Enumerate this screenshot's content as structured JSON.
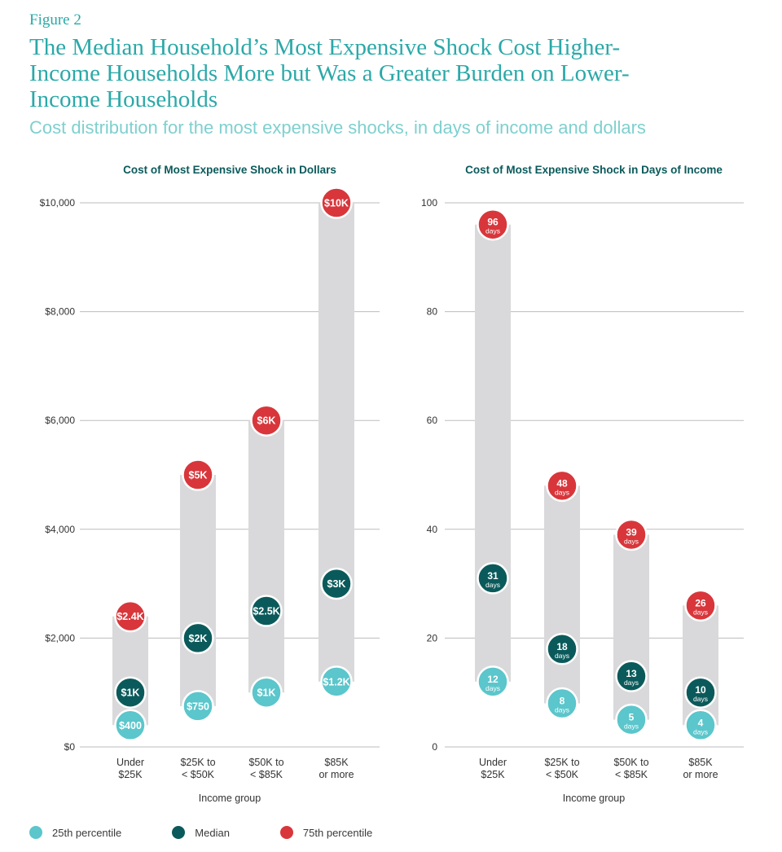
{
  "figure_label": "Figure 2",
  "title_lines": [
    "The Median Household’s Most Expensive Shock Cost Higher-",
    "Income Households More but Was a Greater Burden on Lower-",
    "Income Households"
  ],
  "subtitle": "Cost distribution for the most expensive shocks, in days of income and dollars",
  "colors": {
    "p25": "#5bc6cb",
    "median": "#0b5a5b",
    "p75": "#d8363b",
    "range": "#d9d9db",
    "grid": "#bdbdbd"
  },
  "legend": [
    {
      "label": "25th percentile",
      "color": "#5bc6cb"
    },
    {
      "label": "Median",
      "color": "#0b5a5b"
    },
    {
      "label": "75th percentile",
      "color": "#d8363b"
    }
  ],
  "chart_data": [
    {
      "type": "range-dot",
      "title": "Cost of Most Expensive Shock in Dollars",
      "xlabel": "Income group",
      "ylabel": "",
      "ylim": [
        0,
        10000
      ],
      "yticks": [
        0,
        2000,
        4000,
        6000,
        8000,
        10000
      ],
      "ytick_labels": [
        "$0",
        "$2,000",
        "$4,000",
        "$6,000",
        "$8,000",
        "$10,000"
      ],
      "categories": [
        [
          "Under",
          "$25K"
        ],
        [
          "$25K to",
          "< $50K"
        ],
        [
          "$50K to",
          "< $85K"
        ],
        [
          "$85K",
          "or more"
        ]
      ],
      "series": [
        {
          "name": "25th percentile",
          "values": [
            400,
            750,
            1000,
            1200
          ],
          "labels": [
            [
              "$400"
            ],
            [
              "$750"
            ],
            [
              "$1K"
            ],
            [
              "$1.2K"
            ]
          ]
        },
        {
          "name": "Median",
          "values": [
            1000,
            2000,
            2500,
            3000
          ],
          "labels": [
            [
              "$1K"
            ],
            [
              "$2K"
            ],
            [
              "$2.5K"
            ],
            [
              "$3K"
            ]
          ]
        },
        {
          "name": "75th percentile",
          "values": [
            2400,
            5000,
            6000,
            10000
          ],
          "labels": [
            [
              "$2.4K"
            ],
            [
              "$5K"
            ],
            [
              "$6K"
            ],
            [
              "$10K"
            ]
          ]
        }
      ]
    },
    {
      "type": "range-dot",
      "title": "Cost of Most Expensive Shock in Days of Income",
      "xlabel": "Income group",
      "ylabel": "",
      "ylim": [
        0,
        100
      ],
      "yticks": [
        0,
        20,
        40,
        60,
        80,
        100
      ],
      "ytick_labels": [
        "0",
        "20",
        "40",
        "60",
        "80",
        "100"
      ],
      "categories": [
        [
          "Under",
          "$25K"
        ],
        [
          "$25K to",
          "< $50K"
        ],
        [
          "$50K to",
          "< $85K"
        ],
        [
          "$85K",
          "or more"
        ]
      ],
      "series": [
        {
          "name": "25th percentile",
          "values": [
            12,
            8,
            5,
            4
          ],
          "labels": [
            [
              "12",
              "days"
            ],
            [
              "8",
              "days"
            ],
            [
              "5",
              "days"
            ],
            [
              "4",
              "days"
            ]
          ]
        },
        {
          "name": "Median",
          "values": [
            31,
            18,
            13,
            10
          ],
          "labels": [
            [
              "31",
              "days"
            ],
            [
              "18",
              "days"
            ],
            [
              "13",
              "days"
            ],
            [
              "10",
              "days"
            ]
          ]
        },
        {
          "name": "75th percentile",
          "values": [
            96,
            48,
            39,
            26
          ],
          "labels": [
            [
              "96",
              "days"
            ],
            [
              "48",
              "days"
            ],
            [
              "39",
              "days"
            ],
            [
              "26",
              "days"
            ]
          ]
        }
      ]
    }
  ]
}
